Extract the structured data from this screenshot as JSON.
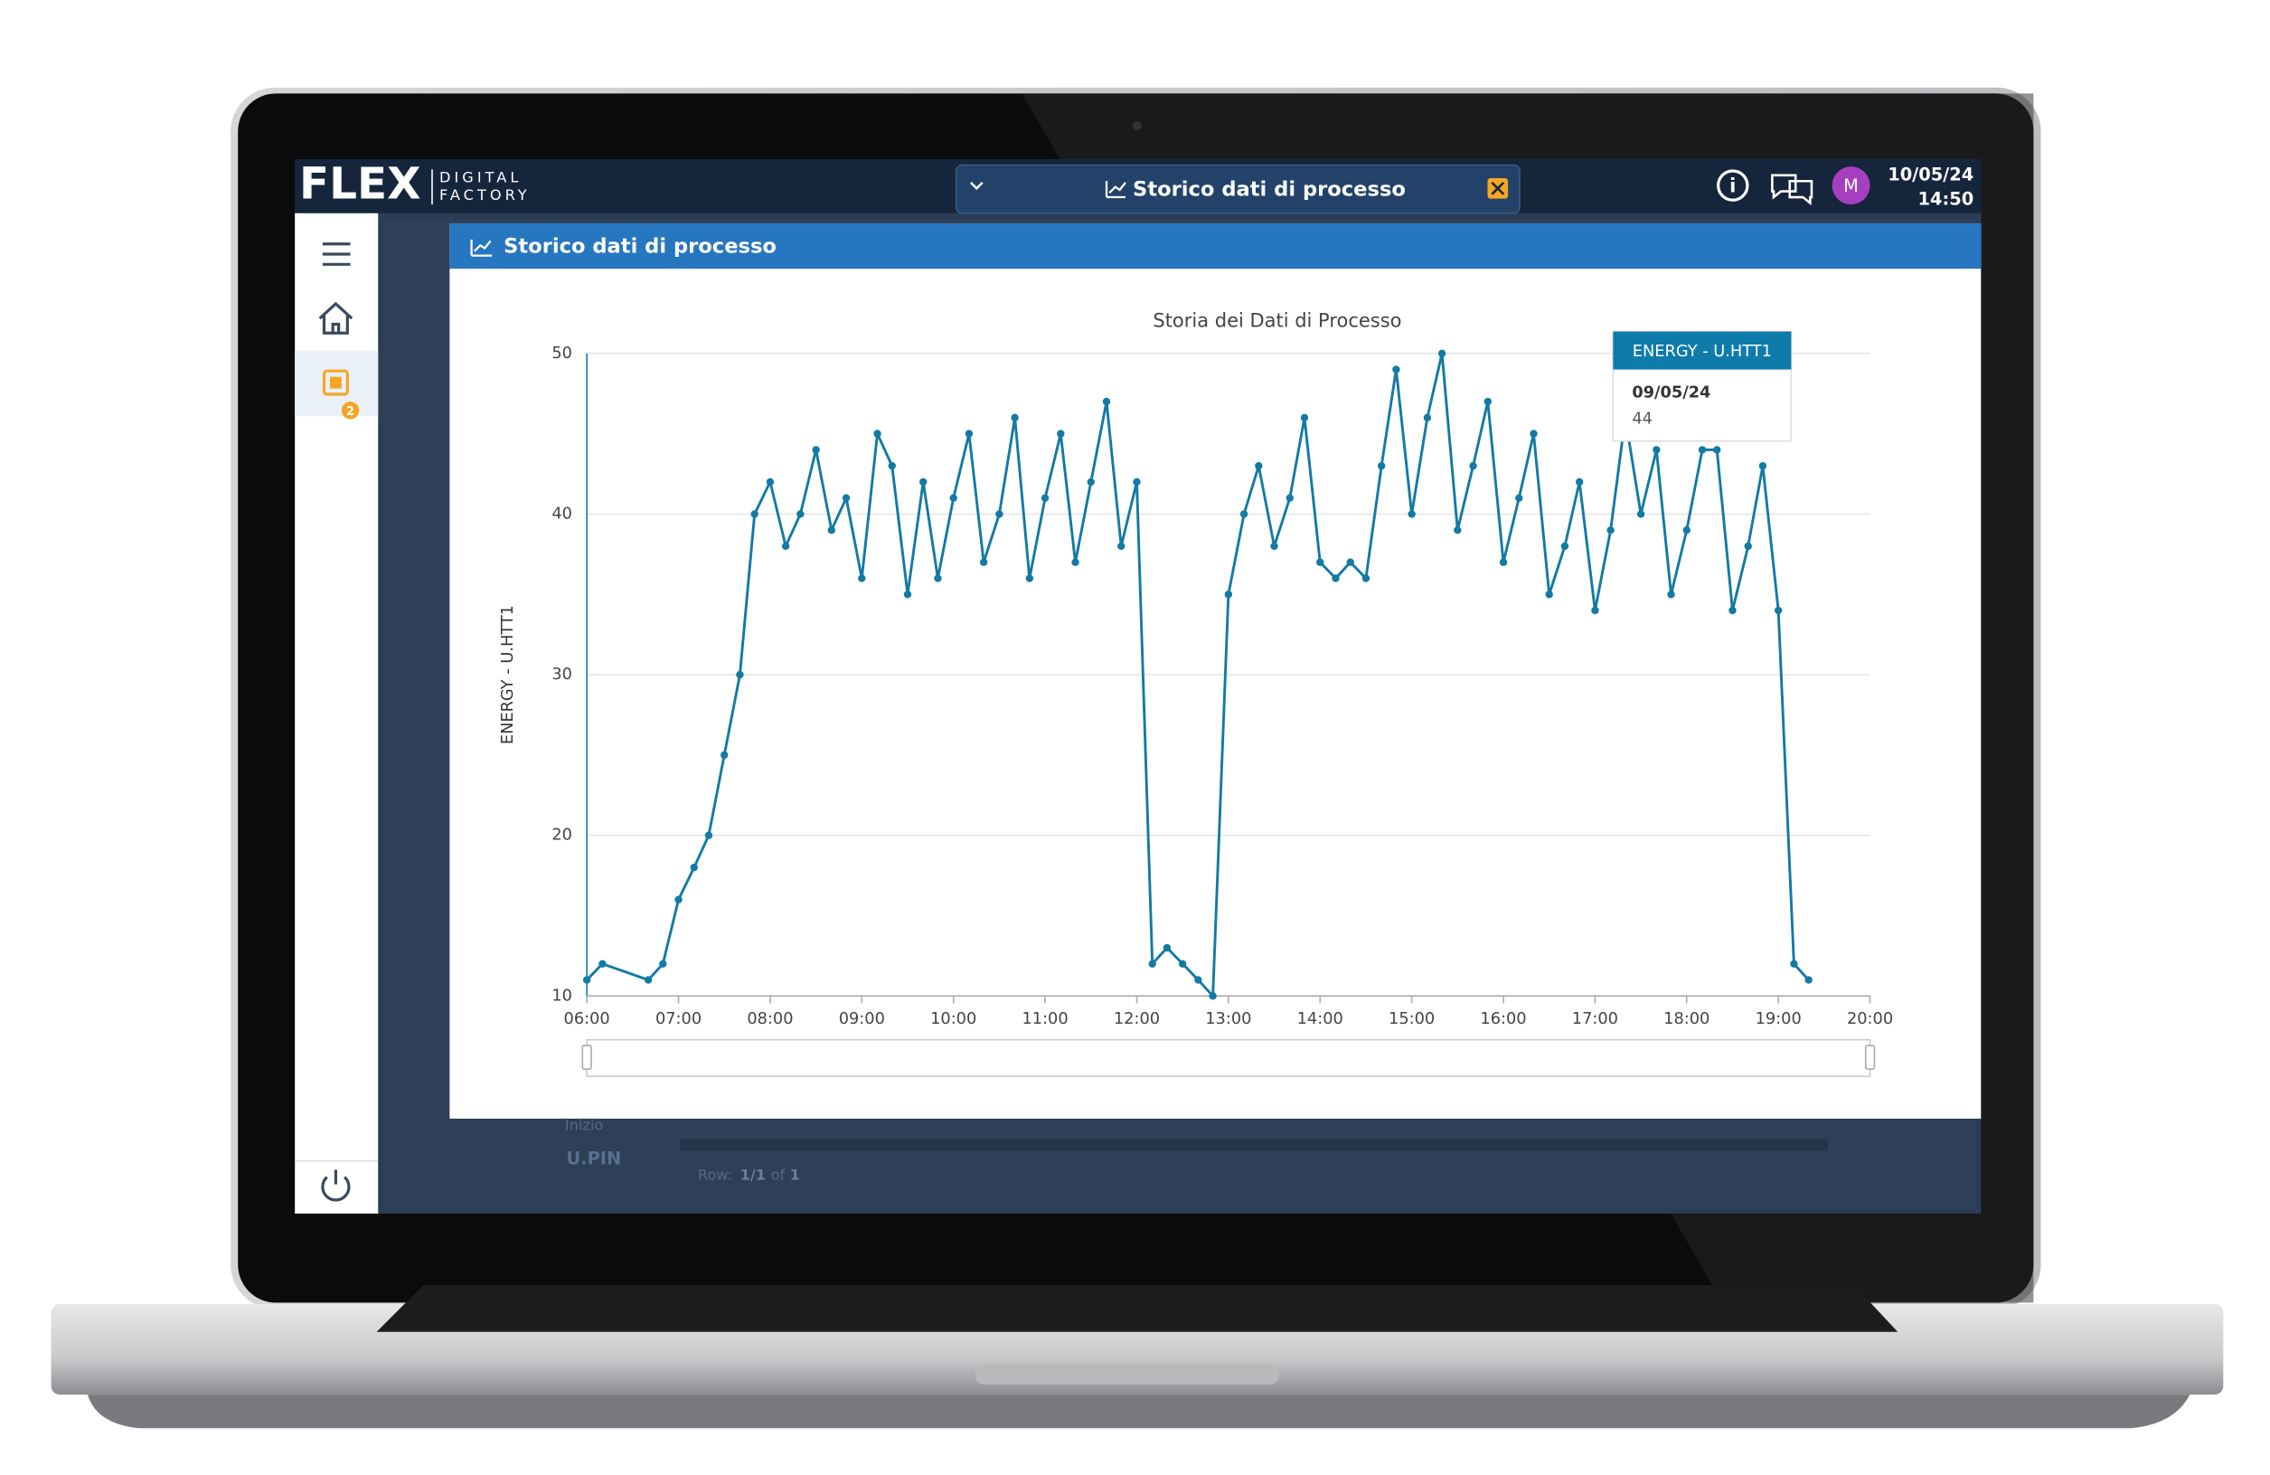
{
  "header": {
    "logo": "FLEX",
    "logo_sub1": "DIGITAL",
    "logo_sub2": "FACTORY",
    "tab_title": "Storico dati di processo",
    "avatar": "M",
    "date": "10/05/24",
    "time": "14:50"
  },
  "sidebar": {
    "badge": "2"
  },
  "background": {
    "label1": "Inizio",
    "label2": "U.PIN",
    "row_prefix": "Row:",
    "row_pos": "1/1",
    "row_of": "of",
    "row_total": "1"
  },
  "panel": {
    "title": "Storico dati di processo"
  },
  "tooltip": {
    "date": "09/05/24",
    "value": 44
  },
  "chart_data": {
    "type": "line",
    "title": "Storia dei Dati di Processo",
    "y_label": "ENERGY - U.HTT1",
    "x": [
      6,
      6.17,
      6.67,
      6.83,
      7,
      7.17,
      7.33,
      7.5,
      7.67,
      7.83,
      8,
      8.17,
      8.33,
      8.5,
      8.67,
      8.83,
      9,
      9.17,
      9.33,
      9.5,
      9.67,
      9.83,
      10,
      10.17,
      10.33,
      10.5,
      10.67,
      10.83,
      11,
      11.17,
      11.33,
      11.5,
      11.67,
      11.83,
      12,
      12.17,
      12.33,
      12.5,
      12.67,
      12.83,
      13,
      13.17,
      13.33,
      13.5,
      13.67,
      13.83,
      14,
      14.17,
      14.33,
      14.5,
      14.67,
      14.83,
      15,
      15.17,
      15.33,
      15.5,
      15.67,
      15.83,
      16,
      16.17,
      16.33,
      16.5,
      16.67,
      16.83,
      17,
      17.17,
      17.33,
      17.5,
      17.67,
      17.83,
      18,
      18.17,
      18.33,
      18.5,
      18.67,
      18.83,
      19,
      19.17,
      19.33
    ],
    "series": [
      {
        "name": "ENERGY - U.HTT1",
        "color": "#137aa3",
        "values": [
          11,
          12,
          11,
          12,
          16,
          18,
          20,
          25,
          30,
          40,
          42,
          38,
          40,
          44,
          39,
          41,
          36,
          45,
          43,
          35,
          42,
          36,
          41,
          45,
          37,
          40,
          46,
          36,
          41,
          45,
          37,
          42,
          47,
          38,
          42,
          12,
          13,
          12,
          11,
          10,
          35,
          40,
          43,
          38,
          41,
          46,
          37,
          36,
          37,
          36,
          43,
          49,
          40,
          46,
          50,
          39,
          43,
          47,
          37,
          41,
          45,
          35,
          38,
          42,
          34,
          39,
          46,
          40,
          44,
          35,
          39,
          44,
          44,
          34,
          38,
          43,
          34,
          12,
          11
        ]
      }
    ],
    "xlim": [
      6,
      20
    ],
    "xticks": [
      {
        "value": 6,
        "label": "06:00"
      },
      {
        "value": 7,
        "label": "07:00"
      },
      {
        "value": 8,
        "label": "08:00"
      },
      {
        "value": 9,
        "label": "09:00"
      },
      {
        "value": 10,
        "label": "10:00"
      },
      {
        "value": 11,
        "label": "11:00"
      },
      {
        "value": 12,
        "label": "12:00"
      },
      {
        "value": 13,
        "label": "13:00"
      },
      {
        "value": 14,
        "label": "14:00"
      },
      {
        "value": 15,
        "label": "15:00"
      },
      {
        "value": 16,
        "label": "16:00"
      },
      {
        "value": 17,
        "label": "17:00"
      },
      {
        "value": 18,
        "label": "18:00"
      },
      {
        "value": 19,
        "label": "19:00"
      },
      {
        "value": 20,
        "label": "20:00"
      }
    ],
    "ylim": [
      10,
      50
    ],
    "yticks": [
      10,
      20,
      30,
      40,
      50
    ],
    "grid": true
  }
}
